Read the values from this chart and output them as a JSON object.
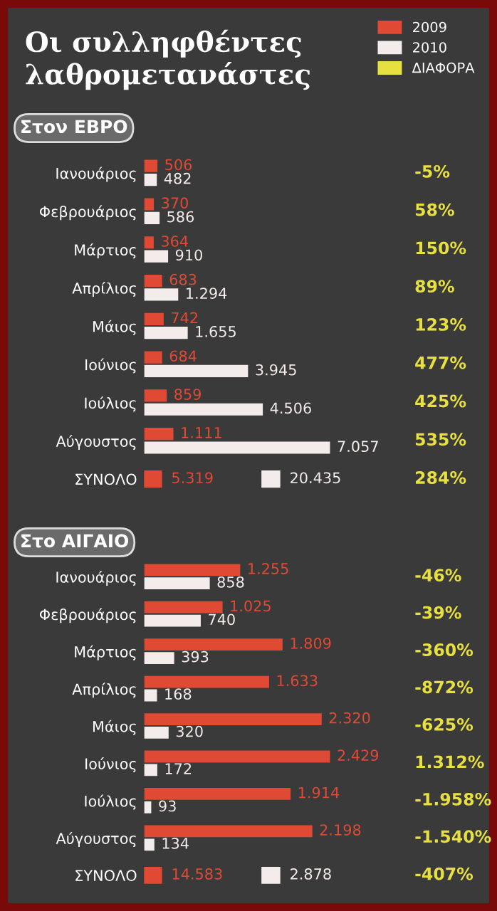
{
  "chart_data": [
    {
      "type": "bar",
      "orientation": "horizontal",
      "title": "Οι συλληφθέντες λαθρομετανάστες",
      "subtitle": "Στον ΕΒΡΟ",
      "legend": "top right",
      "categories": [
        "Ιανουάριος",
        "Φεβρουάριος",
        "Μάρτιος",
        "Απρίλιος",
        "Μάιος",
        "Ιούνιος",
        "Ιούλιος",
        "Αύγουστος",
        "ΣΥΝΟΛΟ"
      ],
      "series": [
        {
          "name": "2009",
          "color": "#e04a35",
          "values": [
            506,
            370,
            364,
            683,
            742,
            684,
            859,
            1111,
            null
          ],
          "value_labels": [
            "506",
            "370",
            "364",
            "683",
            "742",
            "684",
            "859",
            "1.111",
            "5.319"
          ]
        },
        {
          "name": "2010",
          "color": "#f4ecea",
          "values": [
            482,
            586,
            910,
            1294,
            1655,
            3945,
            4506,
            7057,
            null
          ],
          "value_labels": [
            "482",
            "586",
            "910",
            "1.294",
            "1.655",
            "3.945",
            "4.506",
            "7.057",
            "20.435"
          ]
        },
        {
          "name": "ΔΙΑΦΟΡΑ",
          "color": "#e8e040",
          "values": [
            null,
            null,
            null,
            null,
            null,
            null,
            null,
            null,
            null
          ],
          "value_labels": [
            "-5%",
            "58%",
            "150%",
            "89%",
            "123%",
            "477%",
            "425%",
            "535%",
            "284%"
          ]
        }
      ]
    },
    {
      "type": "bar",
      "orientation": "horizontal",
      "title": "Στο ΑΙΓΑΙΟ",
      "categories": [
        "Ιανουάριος",
        "Φεβρουάριος",
        "Μάρτιος",
        "Απρίλιος",
        "Μάιος",
        "Ιούνιος",
        "Ιούλιος",
        "Αύγουστος",
        "ΣΥΝΟΛΟ"
      ],
      "series": [
        {
          "color": "#e04a35",
          "values": [
            1255,
            1025,
            1809,
            1633,
            2320,
            2429,
            1914,
            2198,
            null
          ],
          "value_labels": [
            "1.255",
            "1.025",
            "1.809",
            "1.633",
            "2.320",
            "2.429",
            "1.914",
            "2.198",
            "14.583"
          ]
        },
        {
          "color": "#f4ecea",
          "values": [
            858,
            740,
            393,
            168,
            320,
            172,
            93,
            134,
            null
          ],
          "value_labels": [
            "858",
            "740",
            "393",
            "168",
            "320",
            "172",
            "93",
            "134",
            "2.878"
          ]
        },
        {
          "color": "#e8e040",
          "values": [
            null,
            null,
            null,
            null,
            null,
            null,
            null,
            null,
            null
          ],
          "value_labels": [
            "-46%",
            "-39%",
            "-360%",
            "-872%",
            "-625%",
            "1.312%",
            "-1.958%",
            "-1.540%",
            "-407%"
          ]
        }
      ]
    }
  ]
}
